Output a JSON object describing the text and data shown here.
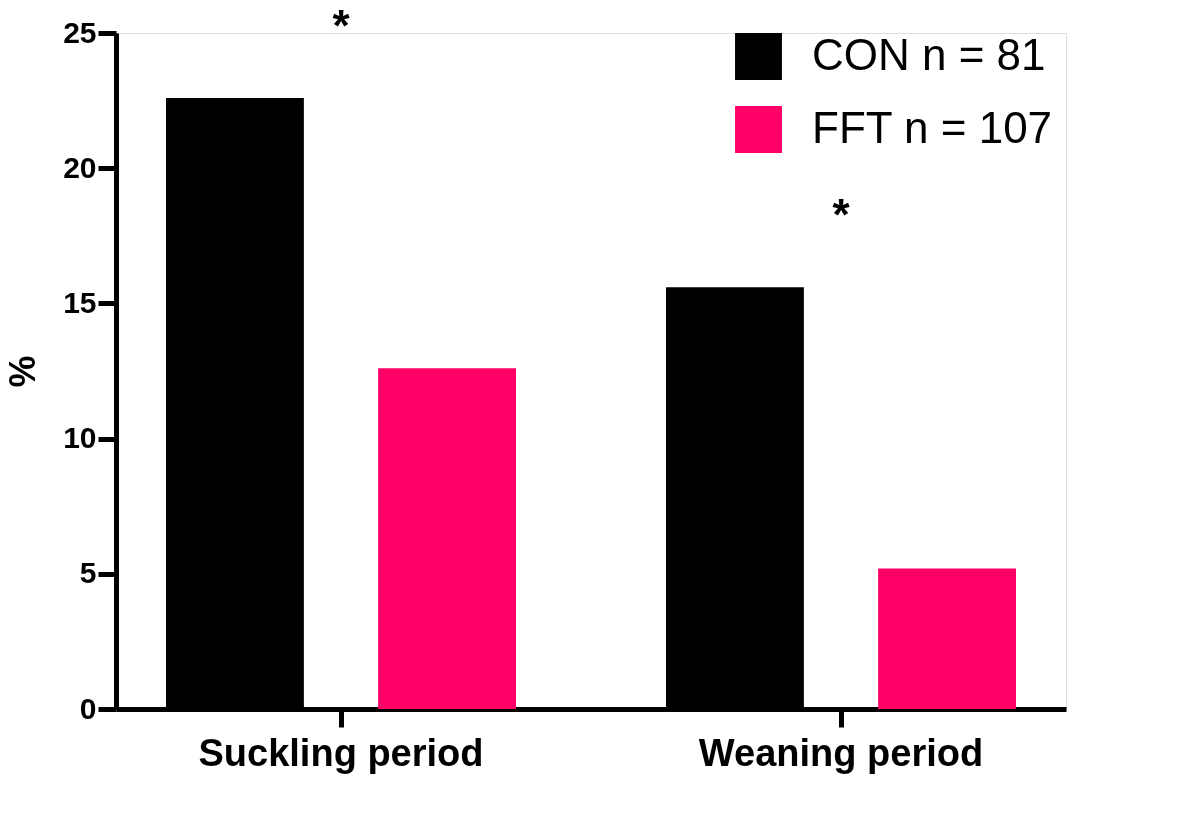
{
  "chart_data": {
    "type": "bar",
    "ylabel": "%",
    "categories": [
      "Suckling period",
      "Weaning period"
    ],
    "series": [
      {
        "name": "CON n = 81",
        "color": "#000000",
        "values": [
          22.6,
          15.6
        ]
      },
      {
        "name": "FFT  n = 107",
        "color": "#ff0066",
        "values": [
          12.6,
          5.2
        ]
      }
    ],
    "ylim": [
      0,
      25
    ],
    "yticks": [
      0,
      5,
      10,
      15,
      20,
      25
    ],
    "grid": false,
    "legend": "top right",
    "annotations": [
      "*",
      "*"
    ]
  }
}
